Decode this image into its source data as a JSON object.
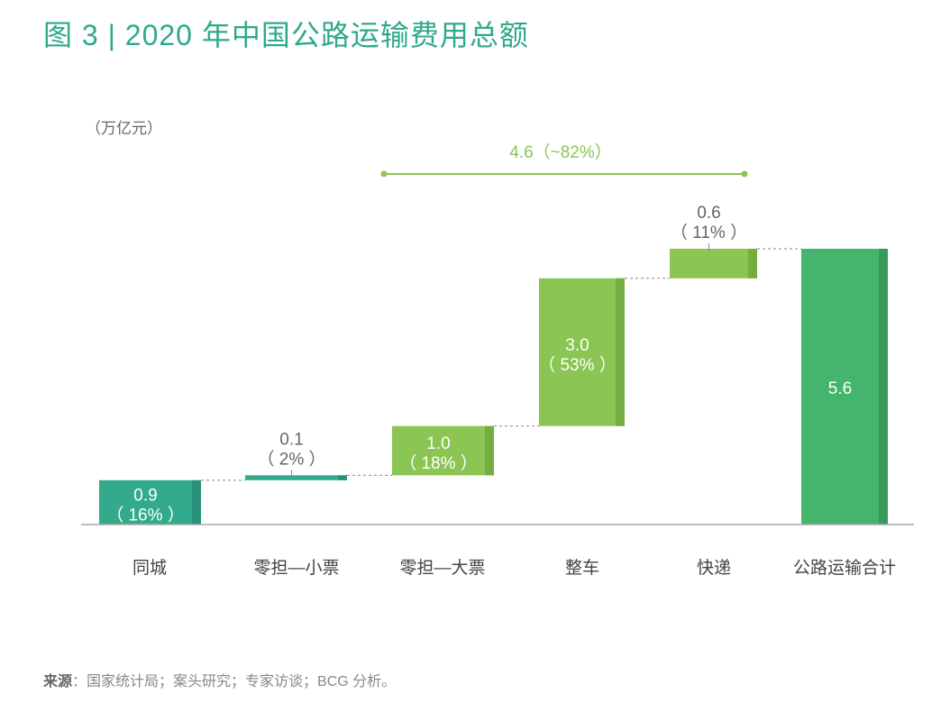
{
  "title": "图 3 | 2020 年中国公路运输费用总额",
  "source_label": "来源",
  "source_text": "：国家统计局；案头研究；专家访谈；BCG 分析。",
  "chart_data": {
    "type": "waterfall",
    "title": "图 3 | 2020 年中国公路运输费用总额",
    "ylabel": "（万亿元）",
    "categories": [
      "同城",
      "零担—小票",
      "零担—大票",
      "整车",
      "快递",
      "公路运输合计"
    ],
    "values": [
      0.9,
      0.1,
      1.0,
      3.0,
      0.6,
      5.6
    ],
    "value_labels": [
      "0.9",
      "0.1",
      "1.0",
      "3.0",
      "0.6",
      "5.6"
    ],
    "share_labels": [
      "（ 16% ）",
      "（ 2% ）",
      "（ 18% ）",
      "（ 53% ）",
      "（ 11% ）",
      ""
    ],
    "is_total": [
      false,
      false,
      false,
      false,
      false,
      true
    ],
    "colors": [
      "#33aa8c",
      "#33aa8c",
      "#8bc554",
      "#8bc554",
      "#8bc554",
      "#45b46c"
    ],
    "edge_colors": [
      "#2a917a",
      "#2a917a",
      "#76ad42",
      "#76ad42",
      "#76ad42",
      "#3a9a5b"
    ],
    "bracket": {
      "label": "4.6（~82%）",
      "from_category": "零担—大票",
      "to_category": "快递",
      "color": "#8bc554"
    },
    "ylim": [
      0,
      5.6
    ],
    "grid": false
  }
}
